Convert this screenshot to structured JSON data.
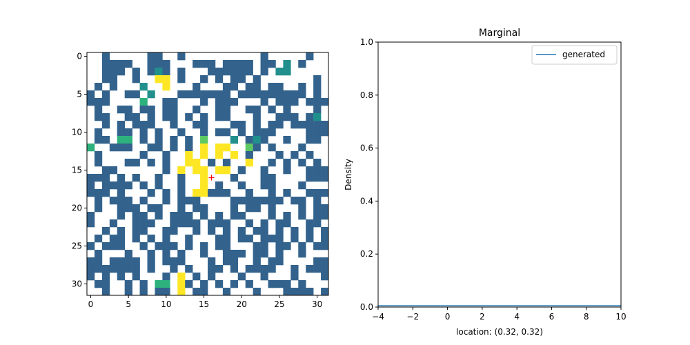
{
  "chart_data": [
    {
      "type": "heatmap",
      "title": "",
      "xlabel": "",
      "ylabel": "",
      "xlim": [
        -0.5,
        31.5
      ],
      "ylim": [
        31.5,
        -0.5
      ],
      "x_ticks": [
        0,
        5,
        10,
        15,
        20,
        25,
        30
      ],
      "y_ticks": [
        0,
        5,
        10,
        15,
        20,
        25,
        30
      ],
      "colormap": "viridis",
      "value_range": [
        0,
        1
      ],
      "masked_color": "#ffffff",
      "value_colors": {
        "0.3": "#33638d",
        "0.5": "#21908d",
        "0.6": "#2db27d",
        "0.75": "#5ec962",
        "1.0": "#fde725"
      },
      "grid_rows": 32,
      "grid_cols": 32,
      "rows": [
        "..3.....33..3..........3.....3..",
        "..3333..333...333.3333.33.5.3...",
        "..333.3.353.3...333333.3.55.....",
        "..33..3..11.3..3.3.33.3.......3.",
        ".3.3...5..1...3...33.33.33..3.3.",
        "3.3..33.5...3333333.333333333.3.",
        "333....6..33...3.333...3.333.333",
        ".3..33.33.33..3..33..33.3.3...3.",
        ".33..33.3.33.3.3.33...3..333.35.",
        "..3.3.333..3..33...33.3.33.33333",
        ".3..33.3.3..3..3.33.3.333....333",
        ".33.66.3.3.3.3.7...5.353..3..33.",
        "6..333..33.3.3.1.11..73.3...3...",
        ".3.....3..3..1.1.1.1.3...3.3.3..",
        ".3...33.3.3..11.3.3..1..3.3.3.3.",
        "..33......3.1.11.11.3..3..3..333",
        "333.3.3..3..3..1...3...33....333",
        "3.3333.3.3..3..1.3..3..33...3...",
        "333.3...3.3.3.11333..3..3.3..333",
        ".3.333.3..3.333....3333333.33.3.",
        ".3..333.33..3.33...3.33.3...3.33",
        "3...3.33.3.333.3.3.33...3.3.3.33",
        "3..3..333..3333.333..3.3.33..33.",
        "..3.3.33..33..3.3.3.3.33.3.3.3.3",
        ".3.33.3.3.3..3...33.33.333.3.3.3",
        "3.333..3.333.3.3.33...33.33.3.33",
        ".3...3..3.3.3..3..333.33.3..3...",
        "33.3333.3.333...3.33..3.33....33",
        "3333333.3..3.3..33.3.3333..3.333",
        "3.3.3.3...3.1.3.3...3..3...3...3",
        ".33..3.3.66.13.3.3.3.3..333.3...",
        "..3..3.3.33.1.33..3...3...3333.3"
      ],
      "marker": {
        "x": 16,
        "y": 16,
        "symbol": "+",
        "color": "#ff0000"
      }
    },
    {
      "type": "line",
      "title": "Marginal",
      "xlabel": "location: (0.32, 0.32)",
      "ylabel": "Density",
      "xlim": [
        -4,
        10
      ],
      "ylim": [
        0,
        1
      ],
      "x_ticks": [
        -4,
        -2,
        0,
        2,
        4,
        6,
        8,
        10
      ],
      "y_ticks": [
        0.0,
        0.2,
        0.4,
        0.6,
        0.8,
        1.0
      ],
      "x_tick_labels": [
        "−4",
        "−2",
        "0",
        "2",
        "4",
        "6",
        "8",
        "10"
      ],
      "y_tick_labels": [
        "0.0",
        "0.2",
        "0.4",
        "0.6",
        "0.8",
        "1.0"
      ],
      "legend_position": "upper right",
      "series": [
        {
          "name": "generated",
          "color": "#1f77b4",
          "x": [
            -4,
            10
          ],
          "y": [
            0.005,
            0.005
          ]
        }
      ]
    }
  ]
}
